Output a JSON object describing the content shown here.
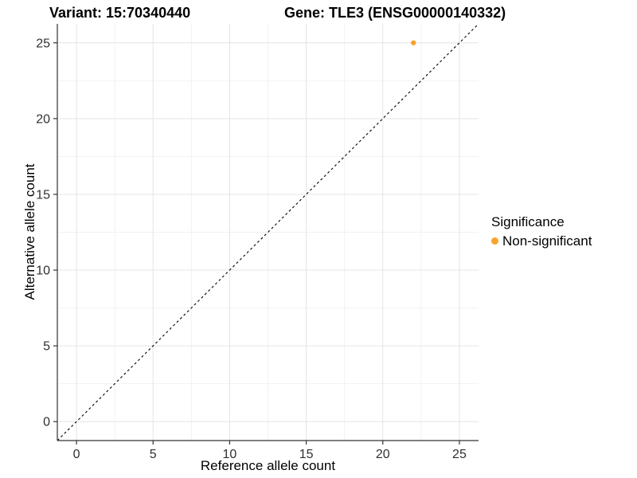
{
  "title": {
    "variant": "Variant: 15:70340440",
    "gene": "Gene: TLE3 (ENSG00000140332)"
  },
  "legend": {
    "title": "Significance",
    "items": [
      {
        "label": "Non-significant",
        "color": "#F9A32B"
      }
    ]
  },
  "chart_data": {
    "type": "scatter",
    "title": "Variant: 15:70340440   Gene: TLE3 (ENSG00000140332)",
    "xlabel": "Reference allele count",
    "ylabel": "Alternative allele count",
    "points": [
      {
        "x": 22,
        "y": 25,
        "series": "Non-significant",
        "color": "#F9A32B"
      }
    ],
    "series": [
      {
        "name": "Non-significant",
        "color": "#F9A32B"
      }
    ],
    "x_ticks": [
      0,
      5,
      10,
      15,
      20,
      25
    ],
    "y_ticks": [
      0,
      5,
      10,
      15,
      20,
      25
    ],
    "xlim": [
      -1.25,
      26.25
    ],
    "ylim": [
      -1.25,
      26.25
    ],
    "identity_line": {
      "slope": 1,
      "intercept": 0,
      "style": "dashed",
      "color": "#000000"
    },
    "grid": "major+minor",
    "legend_title": "Significance",
    "legend_position": "right"
  },
  "colors": {
    "background": "#ffffff",
    "grid_major": "#e4e4e4",
    "grid_minor": "#f2f2f2",
    "axis_line": "#333333",
    "tick_mark": "#333333",
    "tick_label": "#303030",
    "point": "#F9A32B",
    "identity_line": "#000000"
  }
}
